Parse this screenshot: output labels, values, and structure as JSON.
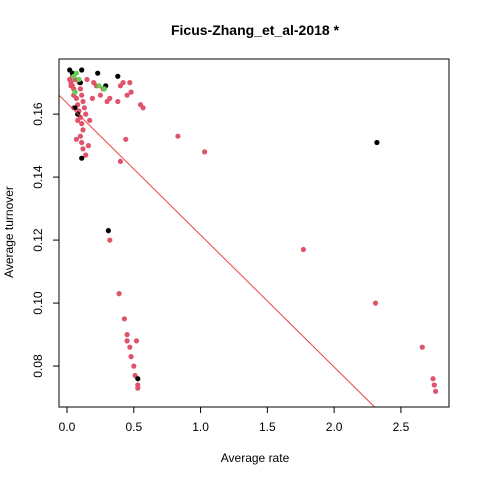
{
  "chart_data": {
    "type": "scatter",
    "title": "Ficus-Zhang_et_al-2018 *",
    "xlabel": "Average rate",
    "ylabel": "Average turnover",
    "xlim": [
      -0.06,
      2.86
    ],
    "ylim": [
      0.067,
      0.1775
    ],
    "x_ticks": [
      0.0,
      0.5,
      1.0,
      1.5,
      2.0,
      2.5
    ],
    "x_tick_labels": [
      "0.0",
      "0.5",
      "1.0",
      "1.5",
      "2.0",
      "2.5"
    ],
    "y_ticks": [
      0.08,
      0.1,
      0.12,
      0.14,
      0.16
    ],
    "y_tick_labels": [
      "0.08",
      "0.10",
      "0.12",
      "0.14",
      "0.16"
    ],
    "grid": false,
    "legend": "none",
    "regression_line": {
      "intercept": 0.1635,
      "slope": -0.0419,
      "color": "#e8433f"
    },
    "series": [
      {
        "color": "#df536b",
        "points": [
          [
            0.02,
            0.171
          ],
          [
            0.03,
            0.17
          ],
          [
            0.04,
            0.169
          ],
          [
            0.05,
            0.168
          ],
          [
            0.05,
            0.166
          ],
          [
            0.06,
            0.167
          ],
          [
            0.07,
            0.165
          ],
          [
            0.08,
            0.163
          ],
          [
            0.04,
            0.172
          ],
          [
            0.06,
            0.171
          ],
          [
            0.09,
            0.17
          ],
          [
            0.1,
            0.168
          ],
          [
            0.11,
            0.166
          ],
          [
            0.12,
            0.164
          ],
          [
            0.13,
            0.162
          ],
          [
            0.14,
            0.16
          ],
          [
            0.1,
            0.159
          ],
          [
            0.11,
            0.157
          ],
          [
            0.12,
            0.155
          ],
          [
            0.1,
            0.153
          ],
          [
            0.11,
            0.151
          ],
          [
            0.12,
            0.149
          ],
          [
            0.14,
            0.147
          ],
          [
            0.16,
            0.15
          ],
          [
            0.07,
            0.152
          ],
          [
            0.03,
            0.169
          ],
          [
            0.05,
            0.162
          ],
          [
            0.08,
            0.158
          ],
          [
            0.09,
            0.161
          ],
          [
            0.15,
            0.171
          ],
          [
            0.17,
            0.158
          ],
          [
            0.19,
            0.165
          ],
          [
            0.2,
            0.17
          ],
          [
            0.22,
            0.169
          ],
          [
            0.25,
            0.166
          ],
          [
            0.27,
            0.168
          ],
          [
            0.3,
            0.164
          ],
          [
            0.32,
            0.165
          ],
          [
            0.38,
            0.164
          ],
          [
            0.4,
            0.169
          ],
          [
            0.42,
            0.17
          ],
          [
            0.45,
            0.166
          ],
          [
            0.47,
            0.17
          ],
          [
            0.48,
            0.167
          ],
          [
            0.55,
            0.163
          ],
          [
            0.57,
            0.162
          ],
          [
            0.4,
            0.145
          ],
          [
            0.44,
            0.152
          ],
          [
            0.83,
            0.153
          ],
          [
            1.03,
            0.148
          ],
          [
            0.32,
            0.12
          ],
          [
            0.39,
            0.103
          ],
          [
            0.43,
            0.095
          ],
          [
            0.45,
            0.09
          ],
          [
            0.45,
            0.088
          ],
          [
            0.47,
            0.086
          ],
          [
            0.48,
            0.083
          ],
          [
            0.52,
            0.088
          ],
          [
            0.5,
            0.08
          ],
          [
            0.51,
            0.077
          ],
          [
            0.53,
            0.074
          ],
          [
            0.53,
            0.073
          ],
          [
            1.77,
            0.117
          ],
          [
            2.31,
            0.1
          ],
          [
            2.66,
            0.086
          ],
          [
            2.74,
            0.076
          ],
          [
            2.75,
            0.074
          ],
          [
            2.76,
            0.072
          ]
        ]
      },
      {
        "color": "#000000",
        "points": [
          [
            0.02,
            0.174
          ],
          [
            0.04,
            0.173
          ],
          [
            0.11,
            0.174
          ],
          [
            0.23,
            0.173
          ],
          [
            0.38,
            0.172
          ],
          [
            0.1,
            0.17
          ],
          [
            0.29,
            0.169
          ],
          [
            0.08,
            0.16
          ],
          [
            0.06,
            0.162
          ],
          [
            0.11,
            0.146
          ],
          [
            0.31,
            0.123
          ],
          [
            2.32,
            0.151
          ],
          [
            0.53,
            0.076
          ]
        ]
      },
      {
        "color": "#61d04f",
        "points": [
          [
            0.05,
            0.172
          ],
          [
            0.07,
            0.173
          ],
          [
            0.09,
            0.171
          ],
          [
            0.24,
            0.169
          ],
          [
            0.28,
            0.168
          ],
          [
            0.06,
            0.167
          ]
        ]
      }
    ]
  }
}
